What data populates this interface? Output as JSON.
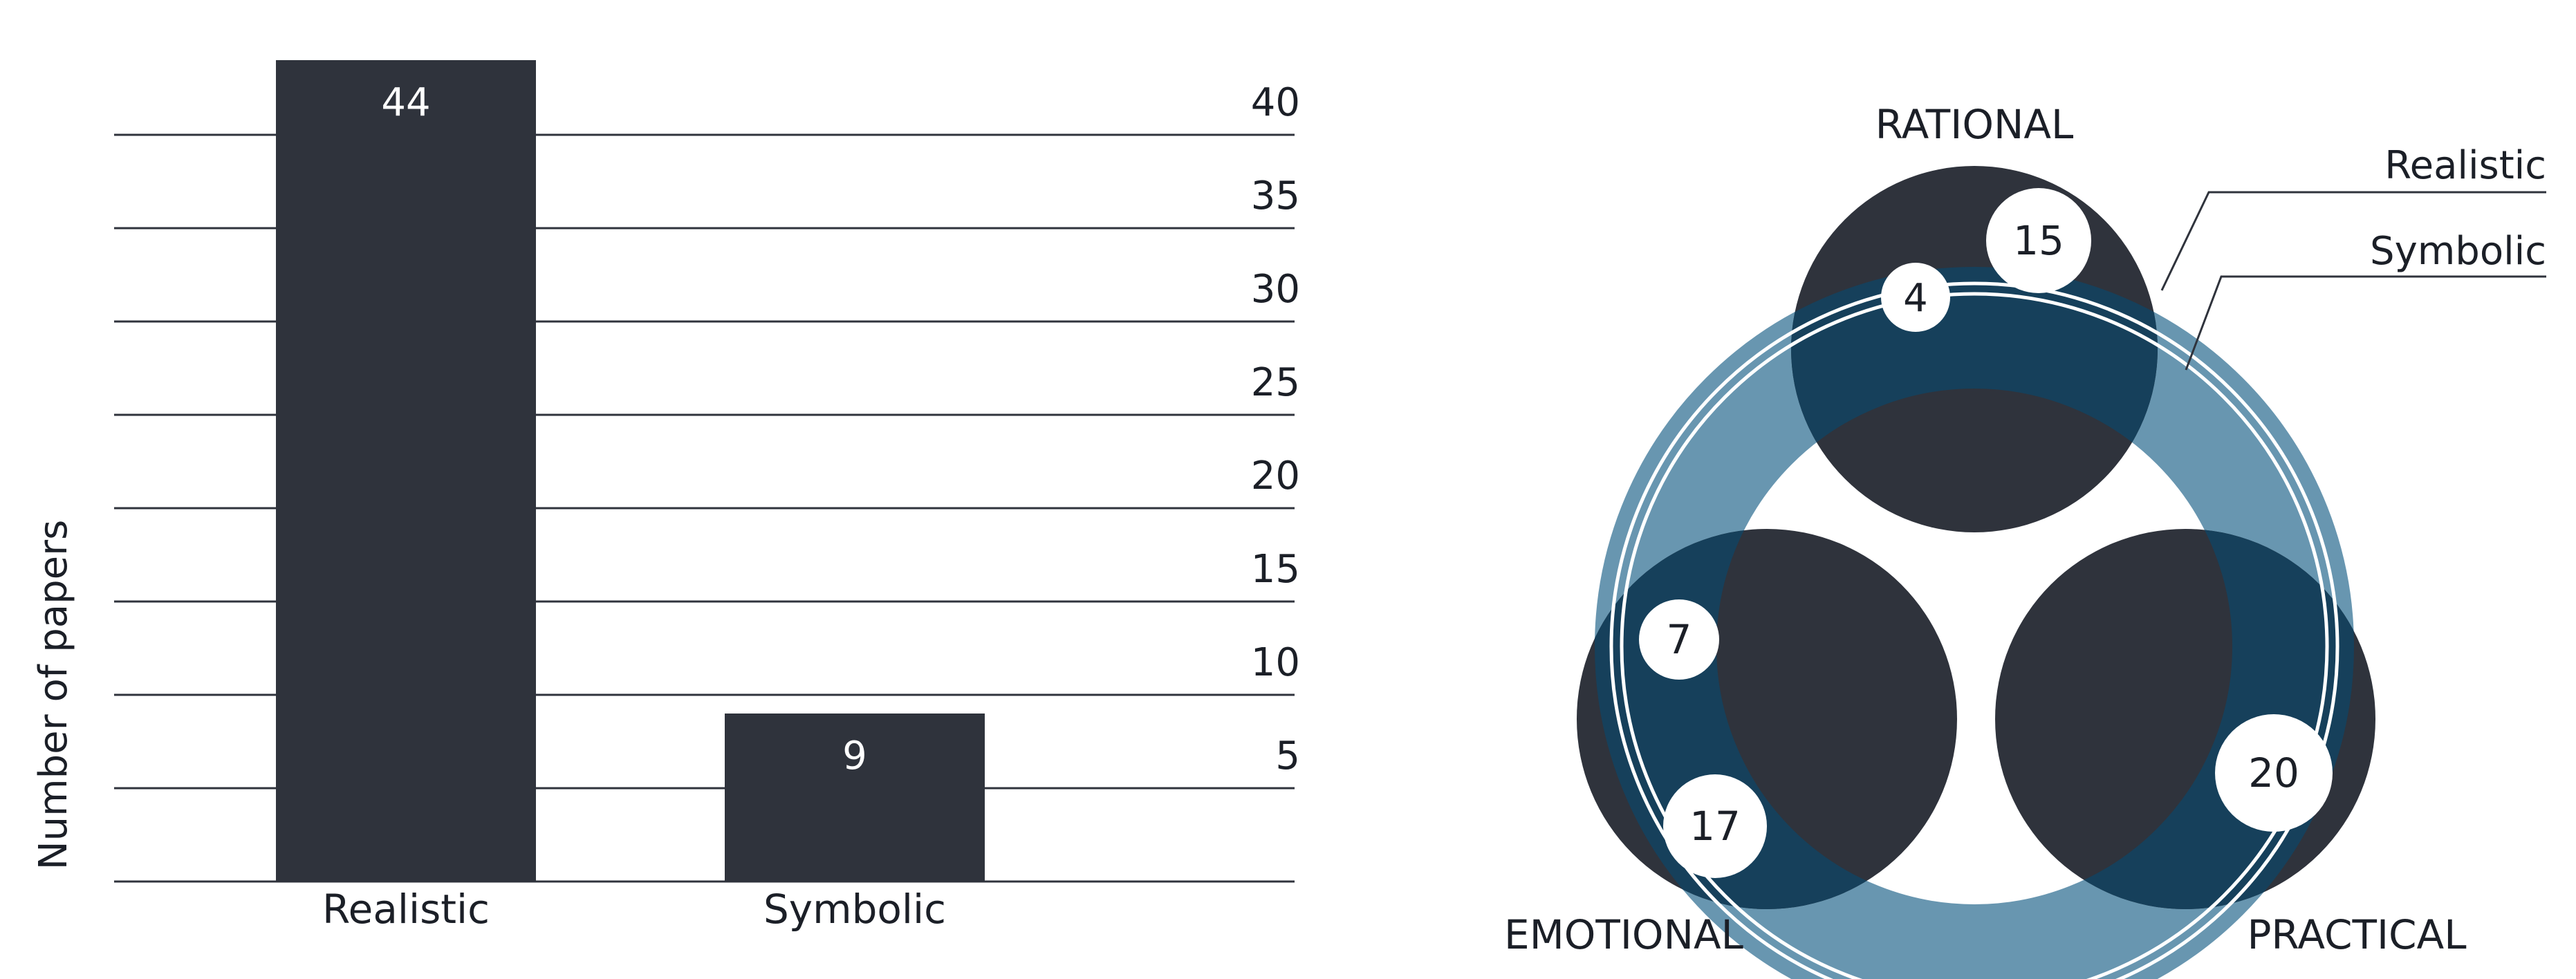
{
  "chart_data": [
    {
      "type": "bar",
      "categories": [
        "Realistic",
        "Symbolic"
      ],
      "values": [
        44,
        9
      ],
      "data_labels": [
        "44",
        "9"
      ],
      "ylabel": "Number of papers",
      "yticks": [
        5,
        10,
        15,
        20,
        25,
        30,
        35,
        40
      ],
      "ytick_labels": [
        "5",
        "10",
        "15",
        "20",
        "25",
        "30",
        "35",
        "40"
      ],
      "ylim": [
        0,
        45
      ],
      "grid": true,
      "colors": {
        "bar": "#2f333c",
        "grid": "#2f333c"
      }
    },
    {
      "type": "other",
      "circles": [
        "RATIONAL",
        "EMOTIONAL",
        "PRACTICAL"
      ],
      "rings": [
        {
          "name": "Realistic",
          "values": {
            "RATIONAL": 15,
            "EMOTIONAL": 17,
            "PRACTICAL": 20
          }
        },
        {
          "name": "Symbolic",
          "values": {
            "RATIONAL": 4,
            "EMOTIONAL": 7
          }
        }
      ],
      "value_labels": [
        "15",
        "4",
        "7",
        "17",
        "20"
      ],
      "colors": {
        "circle": "#2f333c",
        "realistic_ring": "#6896b0",
        "symbolic_ring": "#16405b",
        "badge": "#ffffff"
      }
    }
  ]
}
